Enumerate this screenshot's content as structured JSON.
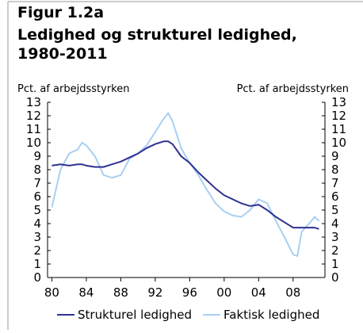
{
  "chart_data": {
    "type": "line",
    "label": "Figur 1.2a",
    "title": [
      "Ledighed og strukturel ledighed,",
      "1980-2011"
    ],
    "ylabel": "Pct. af arbejdsstyrken",
    "y2label": "Pct. af arbejdsstyrken",
    "x": [
      1980,
      1981,
      1982,
      1983,
      1983.5,
      1984,
      1985,
      1986,
      1987,
      1988,
      1989,
      1990,
      1991,
      1992,
      1993,
      1993.5,
      1994,
      1995,
      1996,
      1997,
      1998,
      1999,
      2000,
      2001,
      2002,
      2003,
      2004,
      2005,
      2006,
      2007,
      2008,
      2008.5,
      2009,
      2010,
      2010.5,
      2011
    ],
    "xlim": [
      1979.5,
      2011.7
    ],
    "xticks": [
      {
        "value": 1980,
        "label": "80"
      },
      {
        "value": 1984,
        "label": "84"
      },
      {
        "value": 1988,
        "label": "88"
      },
      {
        "value": 1992,
        "label": "92"
      },
      {
        "value": 1996,
        "label": "96"
      },
      {
        "value": 2000,
        "label": "00"
      },
      {
        "value": 2004,
        "label": "04"
      },
      {
        "value": 2008,
        "label": "08"
      }
    ],
    "ylim": [
      0,
      13
    ],
    "yticks": [
      0,
      1,
      2,
      3,
      4,
      5,
      6,
      7,
      8,
      9,
      10,
      11,
      12,
      13
    ],
    "y2lim": [
      0,
      13
    ],
    "y2ticks": [
      0,
      1,
      2,
      3,
      4,
      5,
      6,
      7,
      8,
      9,
      10,
      11,
      12,
      13
    ],
    "series": [
      {
        "name": "Strukturel ledighed",
        "color": "#2e3192",
        "values": [
          8.3,
          8.4,
          8.3,
          8.4,
          8.4,
          8.3,
          8.2,
          8.2,
          8.4,
          8.6,
          8.9,
          9.2,
          9.6,
          9.9,
          10.1,
          10.1,
          9.9,
          9.0,
          8.5,
          7.8,
          7.2,
          6.6,
          6.1,
          5.8,
          5.5,
          5.3,
          5.4,
          5.0,
          4.5,
          4.1,
          3.7,
          3.7,
          3.7,
          3.7,
          3.7,
          3.6
        ]
      },
      {
        "name": "Faktisk ledighed",
        "color": "#a9cff2",
        "values": [
          5.2,
          8.0,
          9.2,
          9.5,
          10.0,
          9.8,
          9.0,
          7.6,
          7.4,
          7.6,
          8.8,
          9.2,
          9.8,
          10.8,
          11.8,
          12.2,
          11.6,
          9.6,
          8.5,
          7.6,
          6.5,
          5.5,
          4.9,
          4.6,
          4.5,
          5.0,
          5.8,
          5.5,
          4.2,
          3.0,
          1.7,
          1.6,
          3.4,
          4.1,
          4.5,
          4.2
        ]
      }
    ]
  }
}
